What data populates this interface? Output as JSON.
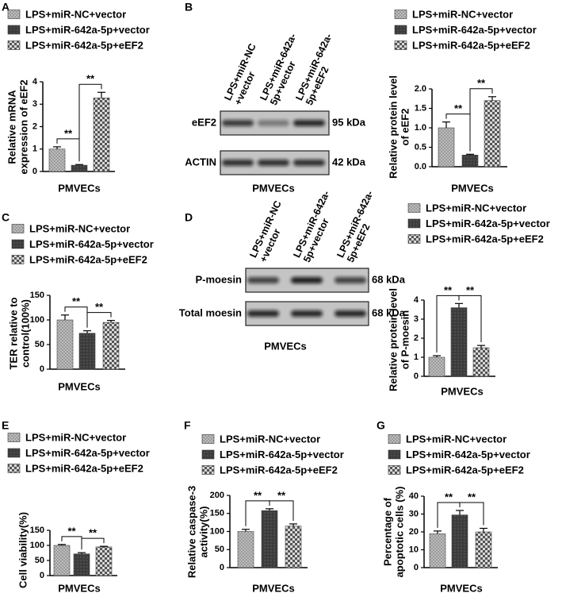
{
  "chart_data": [
    {
      "type": "bar",
      "panel": "A",
      "categories": [
        "LPS+miR-NC+vector",
        "LPS+miR-642a-5p+vector",
        "LPS+miR-642a-5p+eEF2"
      ],
      "colors": [
        "#9a9a9a",
        "#3c3c3c",
        "#555555"
      ],
      "values": [
        1.0,
        0.28,
        3.28
      ],
      "errors": [
        0.1,
        0.03,
        0.25
      ],
      "ylim": [
        0,
        4
      ],
      "yticks": [
        0,
        1,
        2,
        3,
        4
      ],
      "ylabel": [
        "Relative mRNA",
        "expression of eEF2"
      ],
      "xlabel": "PMVECs",
      "annotations": [
        "**",
        "**"
      ]
    },
    {
      "type": "bar",
      "categories": [
        "LPS+miR-NC+vector",
        "LPS+miR-642a-5p+vector",
        "LPS+miR-642a-5p+eEF2"
      ],
      "colors": [
        "#9a9a9a",
        "#3c3c3c",
        "#555555"
      ],
      "values": [
        1.0,
        0.3,
        1.7
      ],
      "errors": [
        0.15,
        0.02,
        0.1
      ],
      "ylim": [
        0,
        2
      ],
      "yticks": [
        {
          "value": 0,
          "label": "0.0"
        },
        0.5,
        {
          "value": 1,
          "label": "1.0"
        },
        1.5,
        {
          "value": 2,
          "label": "2.0"
        }
      ],
      "ylabel": [
        "Relative protein level",
        "of eEF2"
      ],
      "xlabel": "PMVECs",
      "annotations": [
        "**",
        "**"
      ]
    },
    {
      "type": "bar",
      "panel": "C",
      "categories": [
        "LPS+miR-NC+vector",
        "LPS+miR-642a-5p+vector",
        "LPS+miR-642a-5p+eEF2"
      ],
      "colors": [
        "#9a9a9a",
        "#3c3c3c",
        "#555555"
      ],
      "values": [
        100,
        73,
        95
      ],
      "errors": [
        10,
        5,
        4
      ],
      "ylim": [
        0,
        150
      ],
      "yticks": [
        0,
        50,
        100,
        150
      ],
      "ylabel": [
        "TER relative to",
        "control(100%)"
      ],
      "xlabel": "PMVECs",
      "annotations": [
        "**",
        "**"
      ]
    },
    {
      "type": "bar",
      "categories": [
        "LPS+miR-NC+vector",
        "LPS+miR-642a-5p+vector",
        "LPS+miR-642a-5p+eEF2"
      ],
      "colors": [
        "#9a9a9a",
        "#3c3c3c",
        "#555555"
      ],
      "values": [
        1.0,
        3.6,
        1.5
      ],
      "errors": [
        0.08,
        0.22,
        0.12
      ],
      "ylim": [
        0,
        4
      ],
      "yticks": [
        0,
        1,
        2,
        3,
        4
      ],
      "ylabel": [
        "Relative protein level",
        "of P-moesin"
      ],
      "xlabel": "PMVECs",
      "annotations": [
        "**",
        "**"
      ]
    },
    {
      "type": "bar",
      "panel": "E",
      "categories": [
        "LPS+miR-NC+vector",
        "LPS+miR-642a-5p+vector",
        "LPS+miR-642a-5p+eEF2"
      ],
      "colors": [
        "#9a9a9a",
        "#3c3c3c",
        "#555555"
      ],
      "values": [
        100,
        72,
        95
      ],
      "errors": [
        3,
        4,
        2
      ],
      "ylim": [
        0,
        150
      ],
      "yticks": [
        0,
        50,
        100,
        150
      ],
      "ylabel": [
        "Cell viability(%)"
      ],
      "xlabel": "PMVECs",
      "annotations": [
        "**",
        "**"
      ]
    },
    {
      "type": "bar",
      "panel": "F",
      "categories": [
        "LPS+miR-NC+vector",
        "LPS+miR-642a-5p+vector",
        "LPS+miR-642a-5p+eEF2"
      ],
      "colors": [
        "#9a9a9a",
        "#3c3c3c",
        "#555555"
      ],
      "values": [
        100,
        158,
        115
      ],
      "errors": [
        6,
        5,
        6
      ],
      "ylim": [
        0,
        200
      ],
      "yticks": [
        0,
        50,
        100,
        150,
        200
      ],
      "ylabel": [
        "Relative caspase-3",
        "activity(%)"
      ],
      "xlabel": "PMVECs",
      "annotations": [
        "**",
        "**"
      ]
    },
    {
      "type": "bar",
      "panel": "G",
      "categories": [
        "LPS+miR-NC+vector",
        "LPS+miR-642a-5p+vector",
        "LPS+miR-642a-5p+eEF2"
      ],
      "colors": [
        "#9a9a9a",
        "#3c3c3c",
        "#555555"
      ],
      "values": [
        19,
        29.5,
        20
      ],
      "errors": [
        1.5,
        2.5,
        2
      ],
      "ylim": [
        0,
        40
      ],
      "yticks": [
        0,
        10,
        20,
        30,
        40
      ],
      "ylabel": [
        "Percentage of",
        "apoptotic cells (%)"
      ],
      "xlabel": "PMVECs",
      "annotations": [
        "**",
        "**"
      ]
    }
  ],
  "blots": [
    {
      "panel": "B",
      "lanes": [
        [
          "LPS+miR-NC",
          "+vector"
        ],
        [
          "LPS+miR-642a-",
          "5p+vector"
        ],
        [
          "LPS+miR-642a-",
          "5p+eEF2"
        ]
      ],
      "rows": [
        {
          "label": "eEF2",
          "size": "95 kDa"
        },
        {
          "label": "ACTIN",
          "size": "42 kDa"
        }
      ],
      "xlabel": "PMVECs"
    },
    {
      "panel": "D",
      "lanes": [
        [
          "LPS+miR-NC",
          "+vector"
        ],
        [
          "LPS+miR-642a-",
          "5p+vector"
        ],
        [
          "LPS+miR-642a-",
          "5p+eEF2"
        ]
      ],
      "rows": [
        {
          "label": "P-moesin",
          "size": "68 kDa"
        },
        {
          "label": "Total moesin",
          "size": "68 kDa"
        }
      ],
      "xlabel": "PMVECs"
    }
  ]
}
